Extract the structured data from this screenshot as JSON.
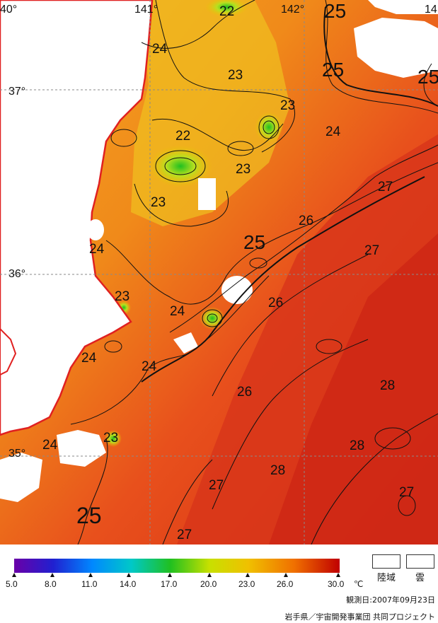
{
  "map": {
    "longitude_labels": [
      "40°",
      "141°",
      "142°",
      "14"
    ],
    "latitude_labels": [
      "37°",
      "36°",
      "35°"
    ],
    "contour_labels": [
      "22",
      "24",
      "23",
      "25",
      "25",
      "25",
      "23",
      "22",
      "24",
      "23",
      "23",
      "27",
      "26",
      "24",
      "25",
      "27",
      "24",
      "23",
      "24",
      "26",
      "24",
      "24",
      "28",
      "26",
      "23",
      "24",
      "28",
      "28",
      "27",
      "25",
      "27",
      "27"
    ]
  },
  "scale": {
    "ticks": [
      "5.0",
      "8.0",
      "11.0",
      "14.0",
      "17.0",
      "20.0",
      "23.0",
      "26.0",
      "30.0"
    ],
    "unit": "℃",
    "colors": [
      "#6a00a8",
      "#2020d0",
      "#0088ff",
      "#00c8c8",
      "#20c020",
      "#c8e000",
      "#f0c000",
      "#f07000",
      "#c00000"
    ]
  },
  "legend": {
    "land_label": "陸域",
    "cloud_label": "雲"
  },
  "observation": "観測日:2007年09月23日",
  "credit": "岩手県／宇宙開発事業団  共同プロジェクト"
}
